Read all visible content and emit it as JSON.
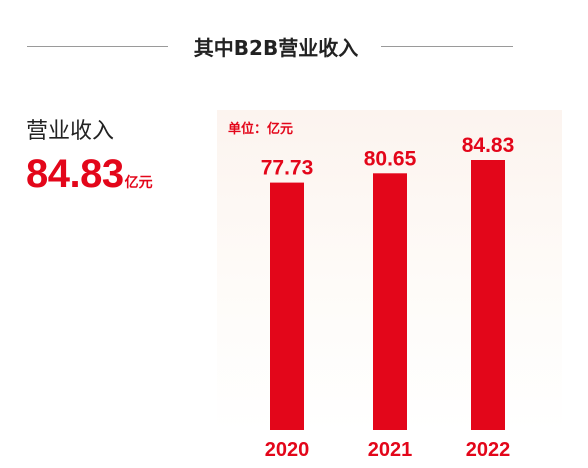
{
  "section": {
    "title": "其中B2B营业收入"
  },
  "kpi": {
    "label": "营业收入",
    "value": "84.83",
    "unit": "亿元"
  },
  "colors": {
    "accent": "#e3061a",
    "panel_background": "#fcf4ef",
    "divider": "#9a9a9a"
  },
  "chart_data": {
    "type": "bar",
    "unit_label": "单位：亿元",
    "categories": [
      "2020",
      "2021",
      "2022"
    ],
    "values": [
      77.73,
      80.65,
      84.83
    ],
    "value_labels": [
      "77.73",
      "80.65",
      "84.83"
    ],
    "title": "",
    "xlabel": "",
    "ylabel": "",
    "grid": false,
    "legend": "none"
  }
}
